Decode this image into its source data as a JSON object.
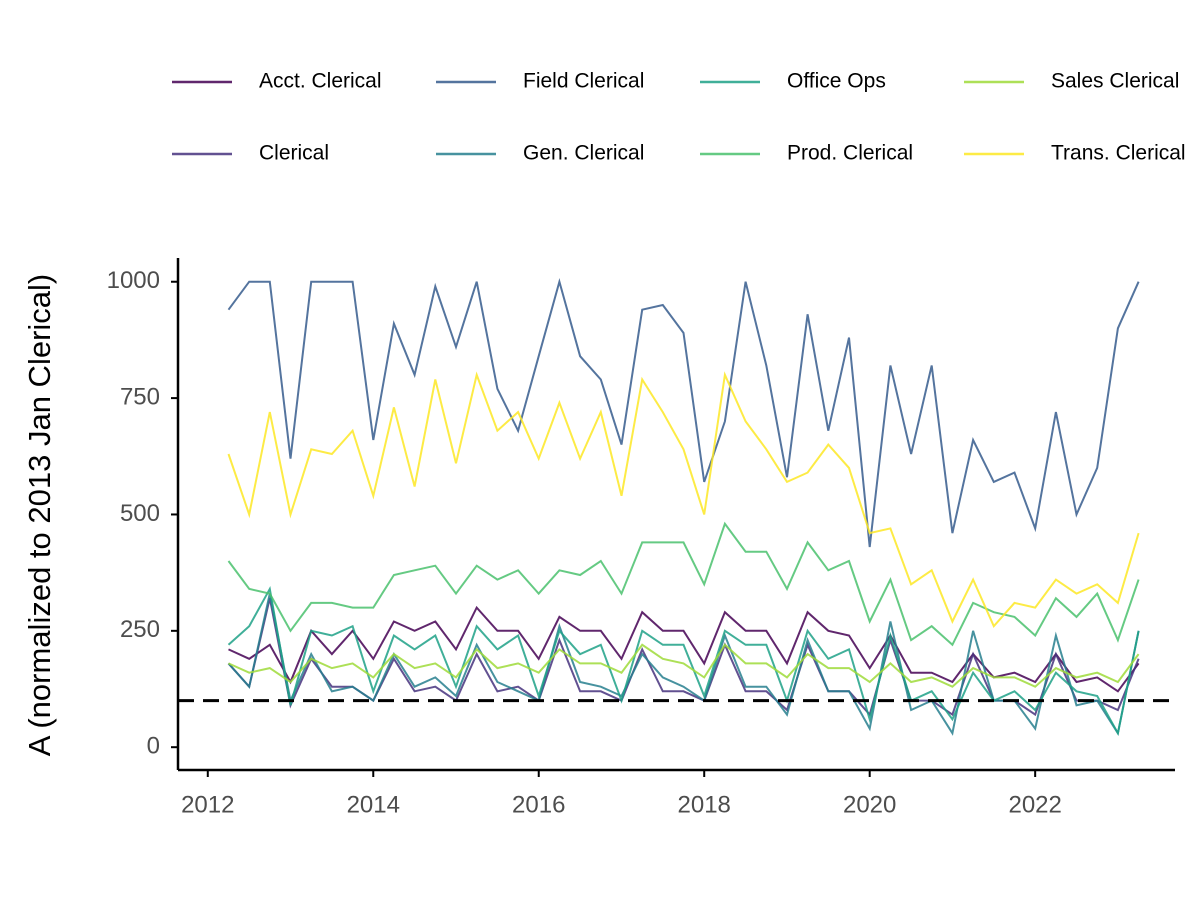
{
  "chart_data": {
    "type": "line",
    "y_label": "A (normalized to 2013 Jan Clerical)",
    "x": [
      2012.25,
      2012.5,
      2012.75,
      2013.0,
      2013.25,
      2013.5,
      2013.75,
      2014.0,
      2014.25,
      2014.5,
      2014.75,
      2015.0,
      2015.25,
      2015.5,
      2015.75,
      2016.0,
      2016.25,
      2016.5,
      2016.75,
      2017.0,
      2017.25,
      2017.5,
      2017.75,
      2018.0,
      2018.25,
      2018.5,
      2018.75,
      2019.0,
      2019.25,
      2019.5,
      2019.75,
      2020.0,
      2020.25,
      2020.5,
      2020.75,
      2021.0,
      2021.25,
      2021.5,
      2021.75,
      2022.0,
      2022.25,
      2022.5,
      2022.75,
      2023.0,
      2023.25
    ],
    "series": [
      {
        "name": "Acct. Clerical",
        "color": "#440154",
        "values": [
          210,
          190,
          220,
          140,
          250,
          200,
          250,
          190,
          270,
          250,
          270,
          210,
          300,
          250,
          250,
          190,
          280,
          250,
          250,
          190,
          290,
          250,
          250,
          180,
          290,
          250,
          250,
          180,
          290,
          250,
          240,
          170,
          240,
          160,
          160,
          140,
          200,
          150,
          160,
          140,
          200,
          140,
          150,
          120,
          180
        ]
      },
      {
        "name": "Clerical",
        "color": "#46337e",
        "values": [
          180,
          130,
          320,
          90,
          190,
          130,
          130,
          100,
          190,
          120,
          130,
          100,
          200,
          120,
          130,
          100,
          230,
          120,
          120,
          100,
          210,
          120,
          120,
          100,
          220,
          120,
          120,
          80,
          220,
          120,
          120,
          70,
          230,
          100,
          100,
          70,
          200,
          100,
          100,
          70,
          200,
          100,
          100,
          80,
          190
        ]
      },
      {
        "name": "Field Clerical",
        "color": "#365c8d",
        "values": [
          940,
          1000,
          1000,
          620,
          1000,
          1000,
          1000,
          660,
          910,
          800,
          990,
          860,
          1000,
          770,
          680,
          840,
          1000,
          840,
          790,
          650,
          940,
          950,
          890,
          570,
          700,
          1000,
          820,
          580,
          930,
          680,
          880,
          430,
          820,
          630,
          820,
          460,
          660,
          570,
          590,
          470,
          720,
          500,
          600,
          900,
          1000
        ]
      },
      {
        "name": "Gen. Clerical",
        "color": "#277f8e",
        "values": [
          180,
          130,
          330,
          100,
          200,
          120,
          130,
          100,
          200,
          130,
          150,
          110,
          220,
          140,
          120,
          100,
          260,
          140,
          130,
          110,
          200,
          150,
          130,
          100,
          240,
          130,
          130,
          70,
          230,
          120,
          120,
          40,
          270,
          80,
          100,
          30,
          250,
          100,
          100,
          40,
          240,
          90,
          100,
          30,
          250
        ]
      },
      {
        "name": "Office Ops",
        "color": "#1fa187",
        "values": [
          220,
          260,
          340,
          90,
          250,
          240,
          260,
          120,
          240,
          210,
          240,
          130,
          260,
          210,
          240,
          110,
          250,
          200,
          220,
          100,
          250,
          220,
          220,
          110,
          250,
          220,
          220,
          100,
          250,
          190,
          210,
          60,
          240,
          100,
          120,
          60,
          160,
          100,
          120,
          80,
          160,
          120,
          110,
          30,
          250
        ]
      },
      {
        "name": "Prod. Clerical",
        "color": "#4ac16d",
        "values": [
          400,
          340,
          330,
          250,
          310,
          310,
          300,
          300,
          370,
          380,
          390,
          330,
          390,
          360,
          380,
          330,
          380,
          370,
          400,
          330,
          440,
          440,
          440,
          350,
          480,
          420,
          420,
          340,
          440,
          380,
          400,
          270,
          360,
          230,
          260,
          220,
          310,
          290,
          280,
          240,
          320,
          280,
          330,
          230,
          360
        ]
      },
      {
        "name": "Sales Clerical",
        "color": "#9fda3a",
        "values": [
          180,
          160,
          170,
          140,
          190,
          170,
          180,
          150,
          200,
          170,
          180,
          150,
          210,
          170,
          180,
          160,
          210,
          180,
          180,
          160,
          220,
          190,
          180,
          150,
          220,
          180,
          180,
          150,
          200,
          170,
          170,
          140,
          180,
          140,
          150,
          130,
          170,
          150,
          150,
          130,
          170,
          150,
          160,
          140,
          200
        ]
      },
      {
        "name": "Trans. Clerical",
        "color": "#fde725",
        "values": [
          630,
          500,
          720,
          500,
          640,
          630,
          680,
          540,
          730,
          560,
          790,
          610,
          800,
          680,
          720,
          620,
          740,
          620,
          720,
          540,
          790,
          720,
          640,
          500,
          800,
          700,
          640,
          570,
          590,
          650,
          600,
          460,
          470,
          350,
          380,
          270,
          360,
          260,
          310,
          300,
          360,
          330,
          350,
          310,
          460
        ]
      }
    ],
    "reference_line": 100,
    "xlim": [
      2011.64,
      2023.69
    ],
    "ylim": [
      -49,
      1051
    ],
    "xticks": [
      2012,
      2014,
      2016,
      2018,
      2020,
      2022
    ],
    "yticks": [
      0,
      250,
      500,
      750,
      1000
    ],
    "grid": false
  }
}
